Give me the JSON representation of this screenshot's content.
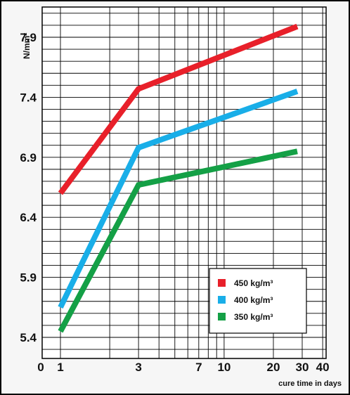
{
  "chart_data": {
    "type": "line",
    "xlabel": "cure time in days",
    "ylabel": "N/mm²",
    "x_scale": "log",
    "x_ticks": [
      "0",
      "1",
      "3",
      "7",
      "10",
      "20",
      "30",
      "40"
    ],
    "y_ticks": [
      "5.4",
      "5.9",
      "6.4",
      "6.9",
      "7.4",
      "7.9"
    ],
    "ylim": [
      5.4,
      8.05
    ],
    "xlim": [
      1,
      40
    ],
    "grid": true,
    "legend_position": "bottom-right",
    "series": [
      {
        "name": "450 kg/m³",
        "color": "#e8202a",
        "x": [
          1,
          3,
          28
        ],
        "y": [
          6.6,
          7.47,
          7.99
        ]
      },
      {
        "name": "400 kg/m³",
        "color": "#19aee8",
        "x": [
          1,
          3,
          28
        ],
        "y": [
          5.65,
          6.98,
          7.45
        ]
      },
      {
        "name": "350 kg/m³",
        "color": "#14a046",
        "x": [
          1,
          3,
          28
        ],
        "y": [
          5.45,
          6.67,
          6.95
        ]
      }
    ]
  }
}
